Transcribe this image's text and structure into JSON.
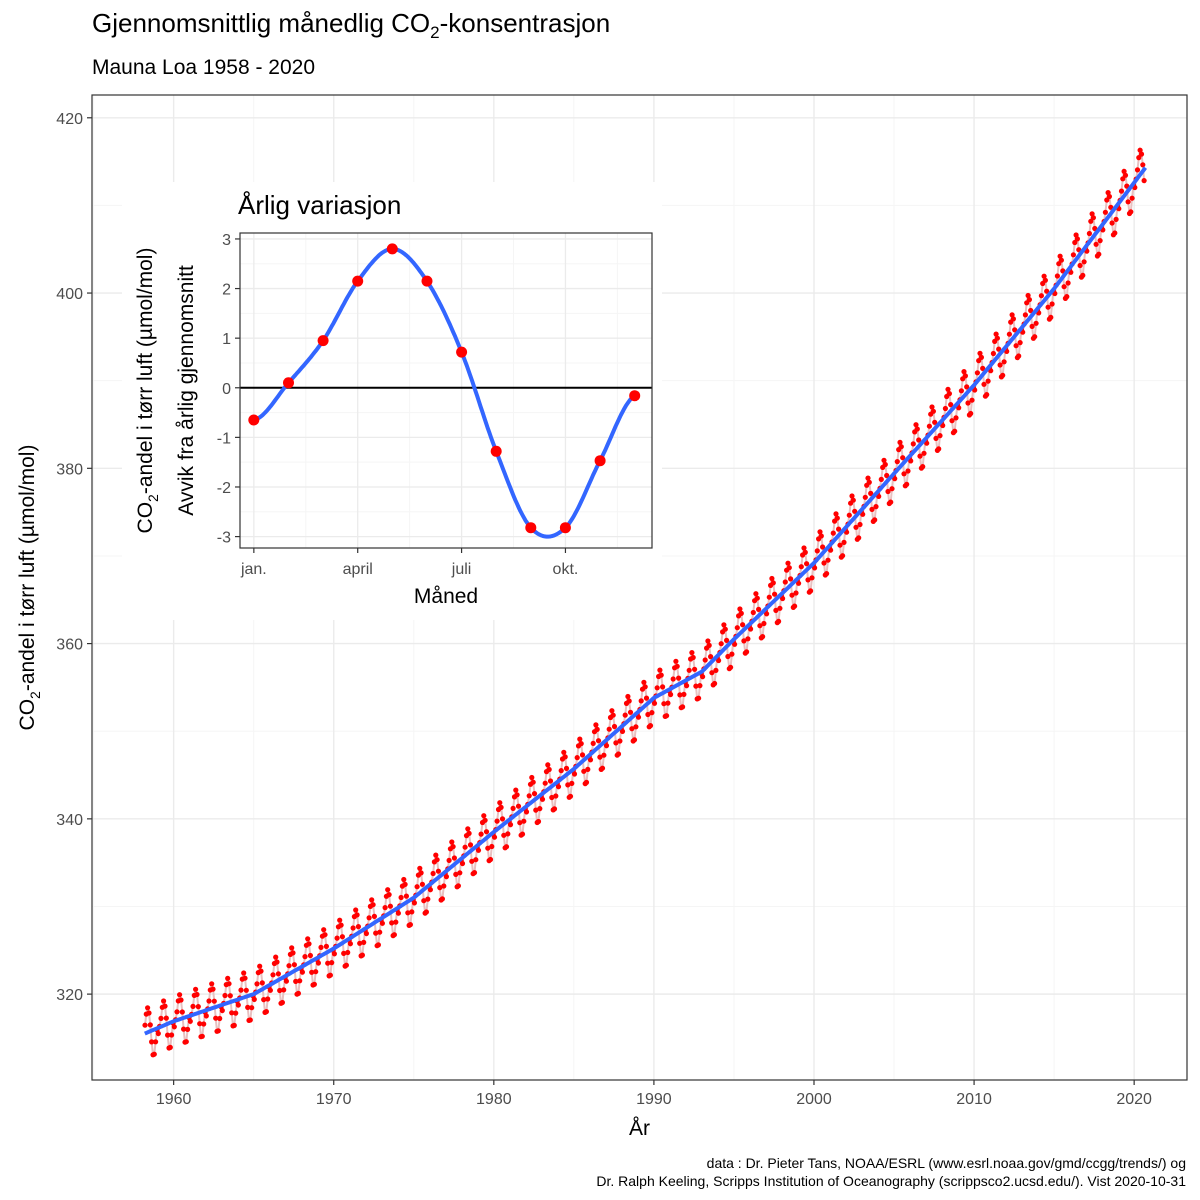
{
  "header": {
    "title_main": "Gjennomsnittlig månedlig CO",
    "title_sub": "2",
    "title_tail": "-konsentrasjon",
    "subtitle": "Mauna Loa 1958 - 2020"
  },
  "caption": {
    "line1": "data : Dr. Pieter Tans, NOAA/ESRL (www.esrl.noaa.gov/gmd/ccgg/trends/) og",
    "line2": "Dr. Ralph Keeling, Scripps Institution of Oceanography (scrippsco2.ucsd.edu/). Vist 2020-10-31"
  },
  "colors": {
    "points": "#ff0000",
    "trend": "#3366ff",
    "connector": "#e8c0c0",
    "grid_major": "#ebebeb",
    "grid_minor": "#f5f5f5",
    "panel_border": "#333333"
  },
  "chart_data": [
    {
      "id": "main",
      "type": "scatter",
      "xlabel": "År",
      "ylabel_main": "CO",
      "ylabel_sub": "2",
      "ylabel_tail": "-andel i tørr luft (µmol/mol)",
      "xlim": [
        1954.9,
        2023.3
      ],
      "ylim": [
        310.2,
        422.6
      ],
      "xticks": [
        1960,
        1970,
        1980,
        1990,
        2000,
        2010,
        2020
      ],
      "xtick_labels": [
        "1960",
        "1970",
        "1980",
        "1990",
        "2000",
        "2010",
        "2020"
      ],
      "yticks": [
        320,
        340,
        360,
        380,
        400,
        420
      ],
      "ytick_labels": [
        "320",
        "340",
        "360",
        "380",
        "400",
        "420"
      ],
      "x_start": 1958.208,
      "x_step": 0.08333,
      "trend_knots": {
        "x": [
          1958.2,
          1960,
          1965,
          1970,
          1975,
          1980,
          1985,
          1990,
          1993,
          1995,
          2000,
          2005,
          2010,
          2015,
          2020.7
        ],
        "y": [
          315.5,
          316.9,
          320.0,
          325.2,
          331.0,
          338.5,
          345.7,
          353.8,
          356.8,
          360.5,
          369.2,
          379.4,
          389.5,
          400.5,
          414.3
        ]
      },
      "seasonal_deviation": [
        -0.65,
        0.1,
        0.95,
        2.15,
        2.8,
        2.15,
        0.72,
        -1.28,
        -2.82,
        -2.82,
        -1.47,
        -0.16
      ],
      "grid": true,
      "legend": "none"
    },
    {
      "id": "inset",
      "type": "line",
      "title": "Årlig variasjon",
      "xlabel": "Måned",
      "ylabel1_main": "CO",
      "ylabel1_sub": "2",
      "ylabel1_tail": "-andel i tørr luft (µmol/mol)",
      "ylabel2": "Avvik fra årlig gjennomsnitt",
      "months": [
        1,
        2,
        3,
        4,
        5,
        6,
        7,
        8,
        9,
        10,
        11,
        12
      ],
      "values": [
        -0.65,
        0.1,
        0.95,
        2.15,
        2.8,
        2.15,
        0.72,
        -1.28,
        -2.82,
        -2.82,
        -1.47,
        -0.16
      ],
      "xlim": [
        0.6,
        12.5
      ],
      "ylim": [
        -3.23,
        3.12
      ],
      "xticks": [
        1,
        4,
        7,
        10
      ],
      "xtick_labels": [
        "jan.",
        "april",
        "juli",
        "okt."
      ],
      "yticks": [
        3,
        2,
        1,
        0,
        -1,
        -2,
        -3
      ],
      "ytick_labels": [
        "3",
        "2",
        "1",
        "0",
        "-1",
        "-2",
        "-3"
      ],
      "reference_line_y": 0,
      "grid": true,
      "legend": "none"
    }
  ]
}
